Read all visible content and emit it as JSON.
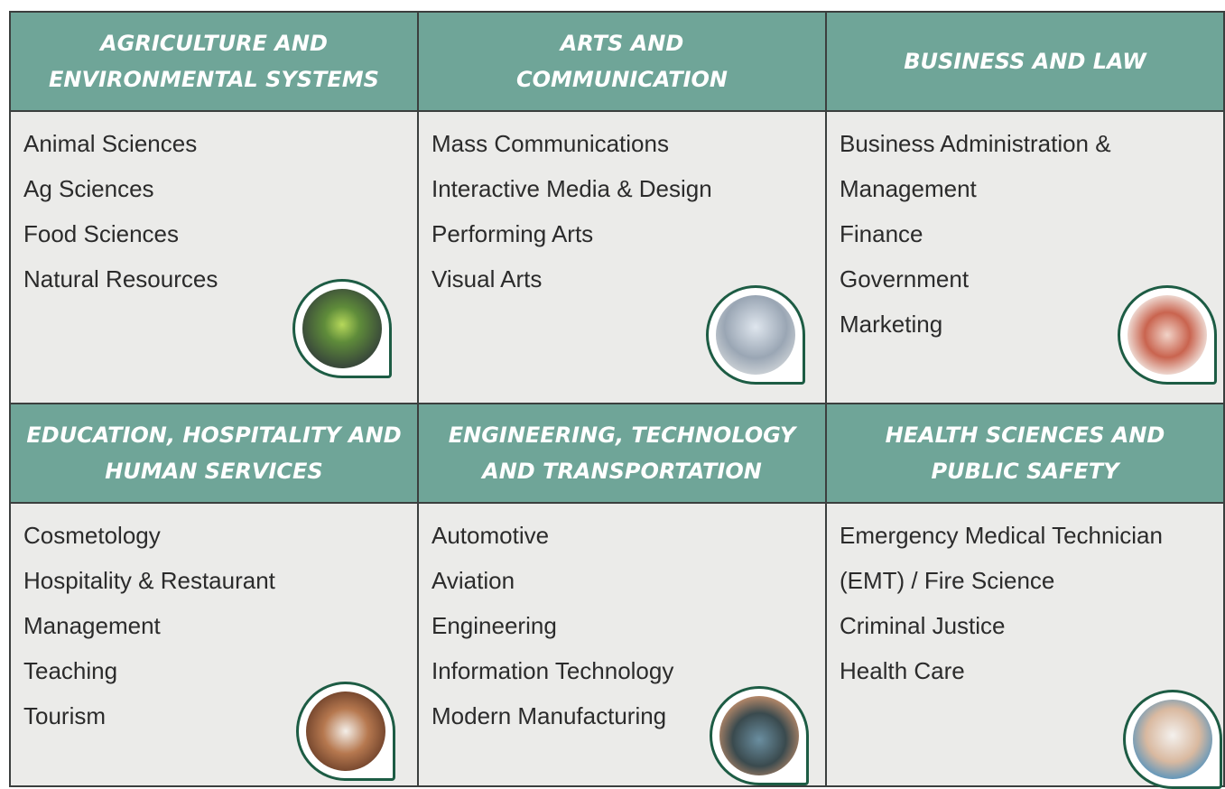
{
  "cells": [
    {
      "title_lines": [
        "AGRICULTURE AND",
        "ENVIRONMENTAL SYSTEMS"
      ],
      "items": [
        "Animal Sciences",
        "Ag Sciences",
        "Food Sciences",
        "Natural Resources"
      ]
    },
    {
      "title_lines": [
        "ARTS AND",
        "COMMUNICATION"
      ],
      "items": [
        "Mass Communications",
        "Interactive Media & Design",
        "Performing Arts",
        "Visual Arts"
      ]
    },
    {
      "title_lines": [
        "BUSINESS AND LAW"
      ],
      "items": [
        "Business Administration &",
        "Management",
        "Finance",
        "Government",
        "Marketing"
      ]
    },
    {
      "title_lines": [
        "EDUCATION, HOSPITALITY AND",
        "HUMAN SERVICES"
      ],
      "items": [
        "Cosmetology",
        "Hospitality & Restaurant",
        "Management",
        "Teaching",
        "Tourism"
      ]
    },
    {
      "title_lines": [
        "ENGINEERING, TECHNOLOGY",
        "AND TRANSPORTATION"
      ],
      "items": [
        "Automotive",
        "Aviation",
        "Engineering",
        "Information Technology",
        "Modern Manufacturing"
      ]
    },
    {
      "title_lines": [
        "HEALTH SCIENCES AND",
        "PUBLIC SAFETY"
      ],
      "items": [
        "Emergency Medical Technician",
        "(EMT) / Fire Science",
        "Criminal Justice",
        "Health Care"
      ]
    }
  ]
}
